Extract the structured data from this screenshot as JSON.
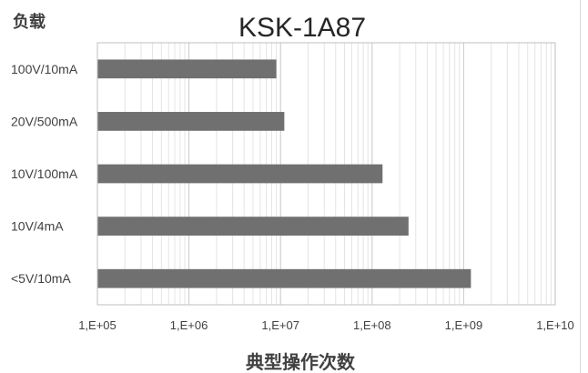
{
  "chart_data": {
    "type": "bar",
    "orientation": "horizontal",
    "title": "KSK-1A87",
    "y_axis_title": "负载",
    "xlabel": "典型操作次数",
    "x_scale": "log",
    "xlim": [
      100000,
      10000000000
    ],
    "x_ticks": [
      {
        "value": 100000,
        "label": "1,E+05"
      },
      {
        "value": 1000000,
        "label": "1,E+06"
      },
      {
        "value": 10000000,
        "label": "1,E+07"
      },
      {
        "value": 100000000,
        "label": "1,E+08"
      },
      {
        "value": 1000000000,
        "label": "1,E+09"
      },
      {
        "value": 10000000000,
        "label": "1,E+10"
      }
    ],
    "categories": [
      "100V/10mA",
      "20V/500mA",
      "10V/100mA",
      "10V/4mA",
      "<5V/10mA"
    ],
    "values": [
      9000000,
      11000000,
      130000000,
      250000000,
      1200000000
    ],
    "bar_color": "#707070",
    "grid": true,
    "legend": "none"
  }
}
